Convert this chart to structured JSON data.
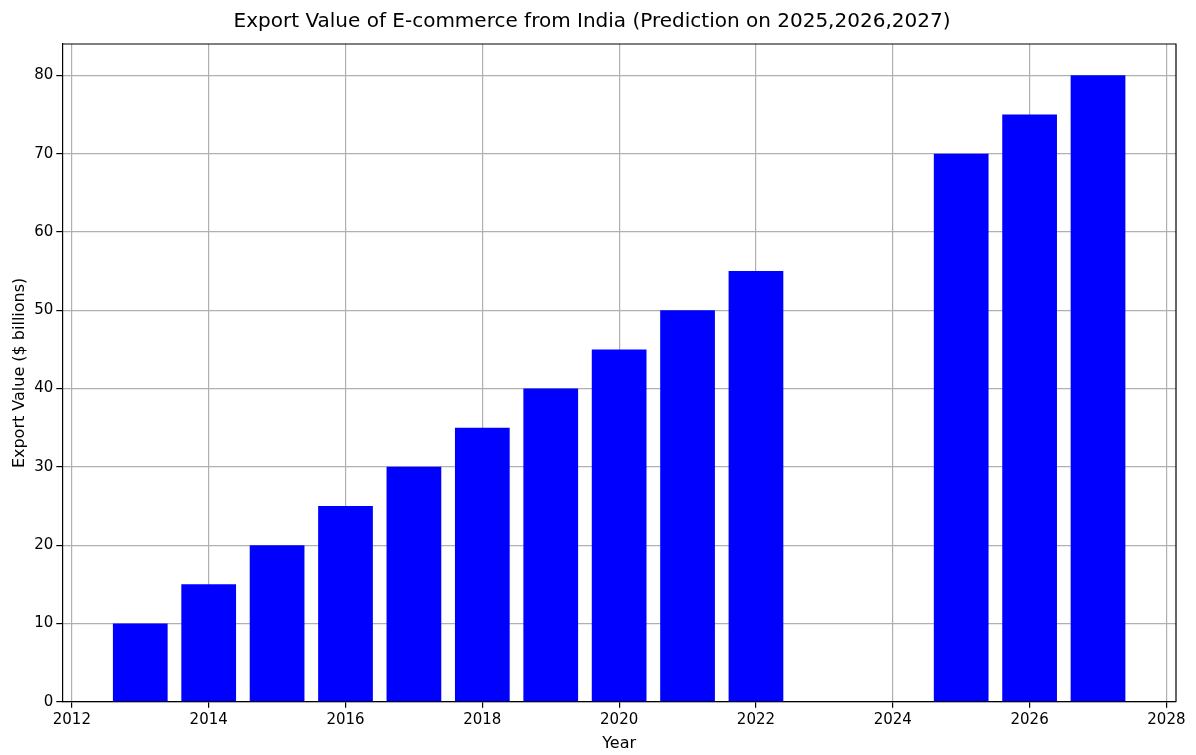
{
  "chart_data": {
    "type": "bar",
    "title": "Export Value of E-commerce from India (Prediction on 2025,2026,2027)",
    "xlabel": "Year",
    "ylabel": "Export Value ($ billions)",
    "x": [
      2013,
      2014,
      2015,
      2016,
      2017,
      2018,
      2019,
      2020,
      2021,
      2022,
      2025,
      2026,
      2027
    ],
    "values": [
      10,
      15,
      20,
      25,
      30,
      35,
      40,
      45,
      50,
      55,
      70,
      75,
      80
    ],
    "color": "#0000ff",
    "xlim": [
      2011.86,
      2028.14
    ],
    "xticks": [
      2012,
      2014,
      2016,
      2018,
      2020,
      2022,
      2024,
      2026,
      2028
    ],
    "ylim": [
      0,
      84
    ],
    "yticks": [
      0,
      10,
      20,
      30,
      40,
      50,
      60,
      70,
      80
    ],
    "grid": true
  }
}
